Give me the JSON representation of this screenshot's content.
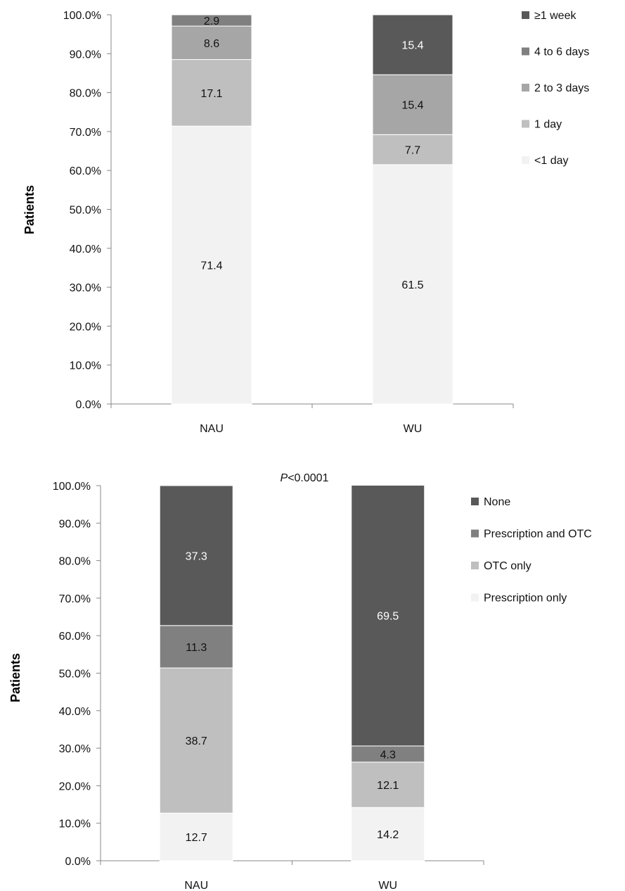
{
  "chart_data": [
    {
      "type": "bar",
      "stacked": true,
      "categories": [
        "NAU",
        "WU"
      ],
      "ylabel": "Patients",
      "ylim": [
        0,
        100
      ],
      "y_ticks": [
        "0.0%",
        "10.0%",
        "20.0%",
        "30.0%",
        "40.0%",
        "50.0%",
        "60.0%",
        "70.0%",
        "80.0%",
        "90.0%",
        "100.0%"
      ],
      "grid": false,
      "legend_position": "right",
      "series": [
        {
          "name": "<1 day",
          "color": "#f2f2f2",
          "label_color": "#111111",
          "values": [
            71.4,
            61.5
          ]
        },
        {
          "name": "1 day",
          "color": "#bfbfbf",
          "label_color": "#111111",
          "values": [
            17.1,
            7.7
          ]
        },
        {
          "name": "2 to 3 days",
          "color": "#a6a6a6",
          "label_color": "#111111",
          "values": [
            8.6,
            15.4
          ]
        },
        {
          "name": "4 to 6 days",
          "color": "#808080",
          "label_color": "#111111",
          "values": [
            2.9,
            0
          ]
        },
        {
          "name": "≥1 week",
          "color": "#595959",
          "label_color": "#ffffff",
          "values": [
            0,
            15.4
          ]
        }
      ],
      "legend_order": [
        "≥1 week",
        "4 to 6 days",
        "2 to 3 days",
        "1 day",
        "<1 day"
      ]
    },
    {
      "type": "bar",
      "stacked": true,
      "categories": [
        "NAU",
        "WU"
      ],
      "ylabel": "Patients",
      "annotation": "P<0.0001",
      "ylim": [
        0,
        100
      ],
      "y_ticks": [
        "0.0%",
        "10.0%",
        "20.0%",
        "30.0%",
        "40.0%",
        "50.0%",
        "60.0%",
        "70.0%",
        "80.0%",
        "90.0%",
        "100.0%"
      ],
      "grid": false,
      "legend_position": "right",
      "series": [
        {
          "name": "Prescription only",
          "color": "#f2f2f2",
          "label_color": "#111111",
          "values": [
            12.7,
            14.2
          ]
        },
        {
          "name": "OTC only",
          "color": "#bfbfbf",
          "label_color": "#111111",
          "values": [
            38.7,
            12.1
          ]
        },
        {
          "name": "Prescription and OTC",
          "color": "#808080",
          "label_color": "#111111",
          "values": [
            11.3,
            4.3
          ]
        },
        {
          "name": "None",
          "color": "#595959",
          "label_color": "#ffffff",
          "values": [
            37.3,
            69.5
          ]
        }
      ],
      "legend_order": [
        "None",
        "Prescription and OTC",
        "OTC only",
        "Prescription only"
      ]
    }
  ]
}
